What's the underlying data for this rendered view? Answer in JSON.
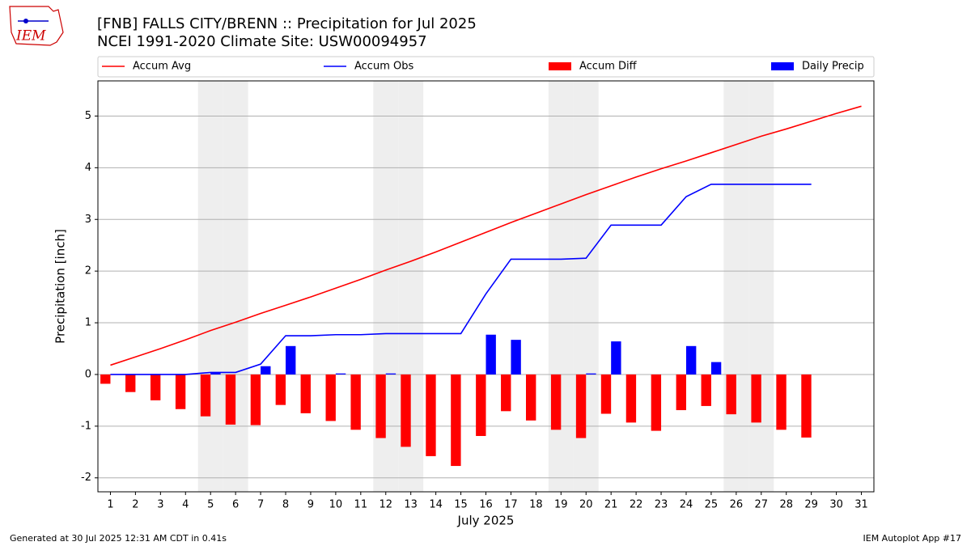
{
  "logo_text": "IEM",
  "footer_left": "Generated at 30 Jul 2025 12:31 AM CDT in 0.41s",
  "footer_right": "IEM Autoplot App #17",
  "chart_data": {
    "type": "bar_line",
    "title": "[FNB] FALLS CITY/BRENN :: Precipitation for Jul 2025",
    "subtitle": "NCEI 1991-2020 Climate Site: USW00094957",
    "xlabel": "July 2025",
    "ylabel": "Precipitation [inch]",
    "x": [
      1,
      2,
      3,
      4,
      5,
      6,
      7,
      8,
      9,
      10,
      11,
      12,
      13,
      14,
      15,
      16,
      17,
      18,
      19,
      20,
      21,
      22,
      23,
      24,
      25,
      26,
      27,
      28,
      29,
      30,
      31
    ],
    "xlim": [
      0.5,
      31.5
    ],
    "xticks": [
      1,
      2,
      3,
      4,
      5,
      6,
      7,
      8,
      9,
      10,
      11,
      12,
      13,
      14,
      15,
      16,
      17,
      18,
      19,
      20,
      21,
      22,
      23,
      24,
      25,
      26,
      27,
      28,
      29,
      30,
      31
    ],
    "ylim": [
      -2.27,
      5.68
    ],
    "yticks": [
      -2,
      -1,
      0,
      1,
      2,
      3,
      4,
      5
    ],
    "grid": true,
    "shaded_days": [
      5,
      6,
      12,
      13,
      19,
      20,
      26,
      27
    ],
    "series": [
      {
        "name": "Accum Avg",
        "kind": "line",
        "color": "#ff0000",
        "values": [
          0.18,
          0.34,
          0.5,
          0.67,
          0.85,
          1.01,
          1.18,
          1.34,
          1.5,
          1.67,
          1.84,
          2.02,
          2.19,
          2.37,
          2.56,
          2.75,
          2.94,
          3.12,
          3.3,
          3.48,
          3.65,
          3.82,
          3.98,
          4.13,
          4.29,
          4.45,
          4.61,
          4.75,
          4.9,
          5.05,
          5.19
        ]
      },
      {
        "name": "Accum Obs",
        "kind": "line",
        "color": "#0000ff",
        "values": [
          0,
          0,
          0,
          0,
          0.04,
          0.04,
          0.2,
          0.75,
          0.75,
          0.77,
          0.77,
          0.79,
          0.79,
          0.79,
          0.79,
          1.56,
          2.23,
          2.23,
          2.23,
          2.25,
          2.89,
          2.89,
          2.89,
          3.44,
          3.68,
          3.68,
          3.68,
          3.68,
          3.68,
          null,
          null
        ]
      },
      {
        "name": "Accum Diff",
        "kind": "bar",
        "side": "left",
        "color": "#ff0000",
        "values": [
          -0.18,
          -0.34,
          -0.5,
          -0.67,
          -0.81,
          -0.97,
          -0.98,
          -0.59,
          -0.75,
          -0.9,
          -1.07,
          -1.23,
          -1.4,
          -1.58,
          -1.77,
          -1.19,
          -0.71,
          -0.89,
          -1.07,
          -1.23,
          -0.76,
          -0.93,
          -1.09,
          -0.69,
          -0.61,
          -0.77,
          -0.93,
          -1.07,
          -1.22,
          null,
          null
        ]
      },
      {
        "name": "Daily Precip",
        "kind": "bar",
        "side": "right",
        "color": "#0000ff",
        "values": [
          0,
          0,
          0,
          0,
          0.04,
          0,
          0.16,
          0.55,
          0,
          0.02,
          0,
          0.02,
          0,
          0,
          0,
          0.77,
          0.67,
          0,
          0,
          0.02,
          0.64,
          0,
          0,
          0.55,
          0.24,
          0,
          0,
          0,
          0,
          null,
          null
        ]
      }
    ]
  }
}
